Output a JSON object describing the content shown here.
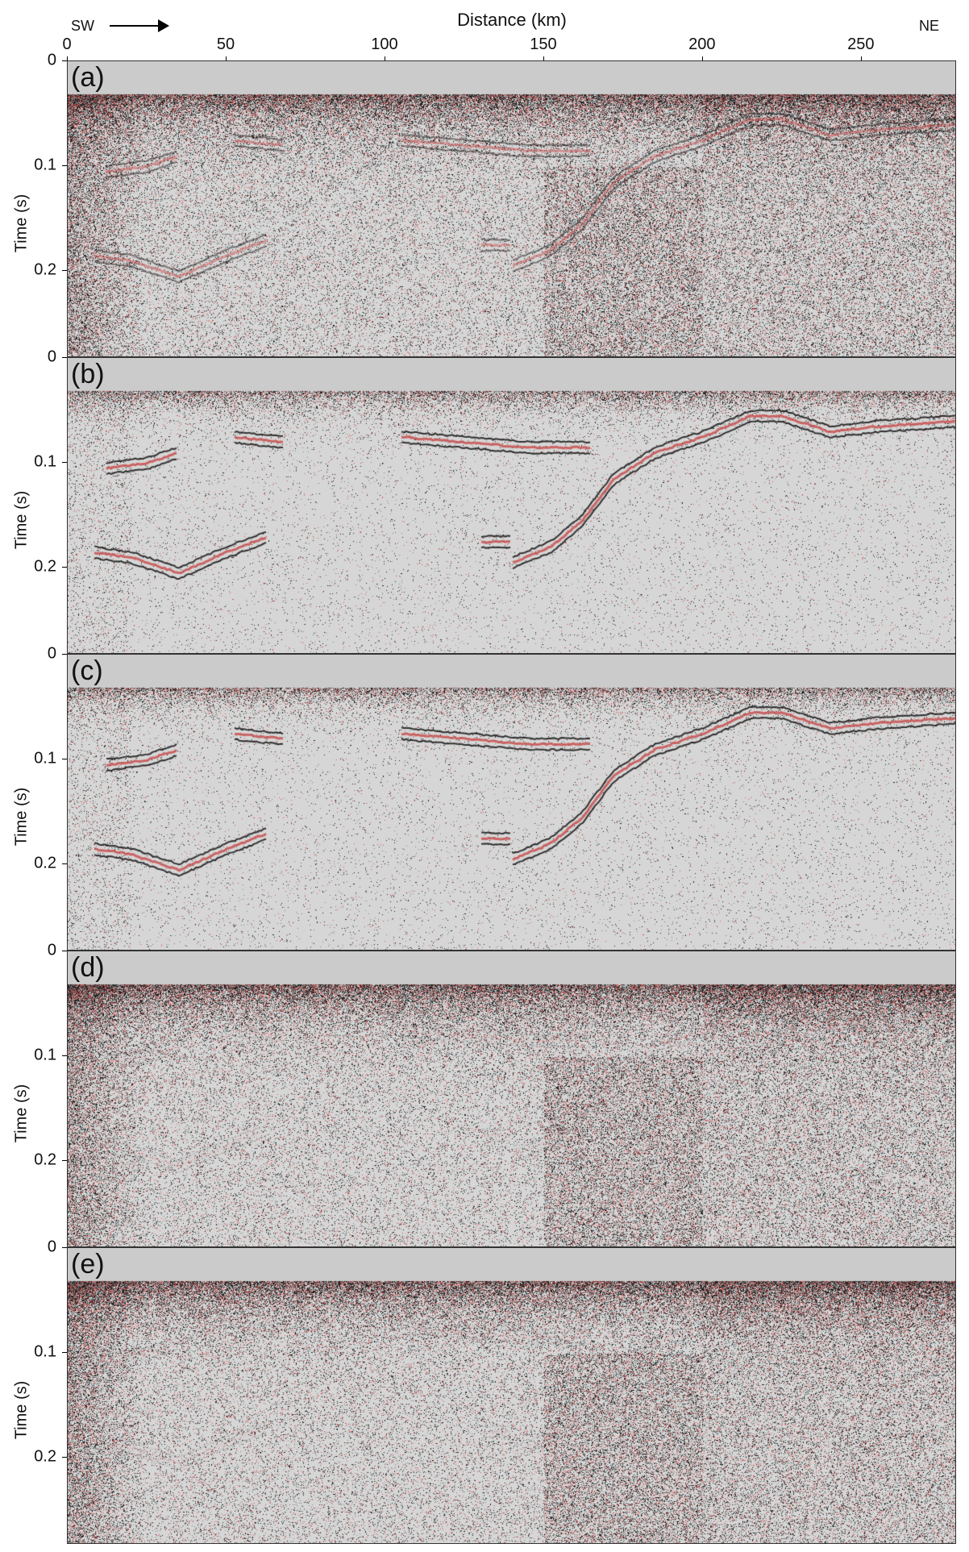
{
  "chart_data": {
    "type": "heatmap",
    "xlabel": "Distance (km)",
    "ylabel": "Time (s)",
    "direction_left": "SW",
    "direction_right": "NE",
    "xlim": [
      0,
      280
    ],
    "ylim": [
      0,
      0.283
    ],
    "x_ticks": [
      "0",
      "50",
      "100",
      "150",
      "200",
      "250"
    ],
    "x_tick_values": [
      0,
      50,
      100,
      150,
      200,
      250
    ],
    "y_ticks": [
      "0",
      "0.1",
      "0.2"
    ],
    "y_tick_values": [
      0,
      0.1,
      0.2
    ],
    "colormap": {
      "negative": "#1e1e1e",
      "zero": "#d6d6d6",
      "positive": "#c85a5a",
      "mask": "#cbcbcb"
    },
    "panels": [
      {
        "label": "(a)",
        "noise": "high"
      },
      {
        "label": "(b)",
        "noise": "low"
      },
      {
        "label": "(c)",
        "noise": "low"
      },
      {
        "label": "(d)",
        "noise": "high"
      },
      {
        "label": "(e)",
        "noise": "high"
      }
    ]
  }
}
